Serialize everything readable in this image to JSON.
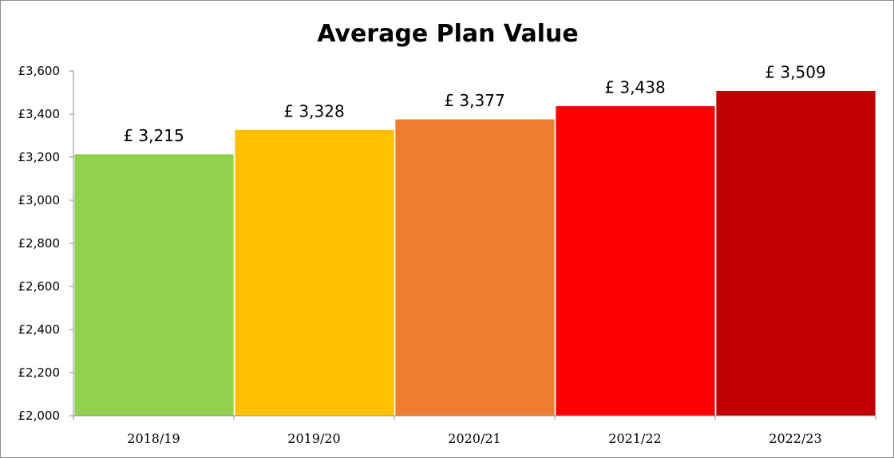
{
  "chart_data": {
    "type": "bar",
    "title": "Average Plan Value",
    "xlabel": "",
    "ylabel": "",
    "categories": [
      "2018/19",
      "2019/20",
      "2020/21",
      "2021/22",
      "2022/23"
    ],
    "values": [
      3215,
      3328,
      3377,
      3438,
      3509
    ],
    "data_labels": [
      "£ 3,215",
      "£ 3,328",
      "£ 3,377",
      "£ 3,438",
      "£ 3,509"
    ],
    "colors": [
      "#92D050",
      "#FFC000",
      "#ED7D31",
      "#FF0000",
      "#C00000"
    ],
    "ylim": [
      2000,
      3600
    ],
    "yticks": [
      2000,
      2200,
      2400,
      2600,
      2800,
      3000,
      3200,
      3400,
      3600
    ],
    "ytick_labels": [
      "£2,000",
      "£2,200",
      "£2,400",
      "£2,600",
      "£2,800",
      "£3,000",
      "£3,200",
      "£3,400",
      "£3,600"
    ],
    "grid": false,
    "legend": "none"
  }
}
